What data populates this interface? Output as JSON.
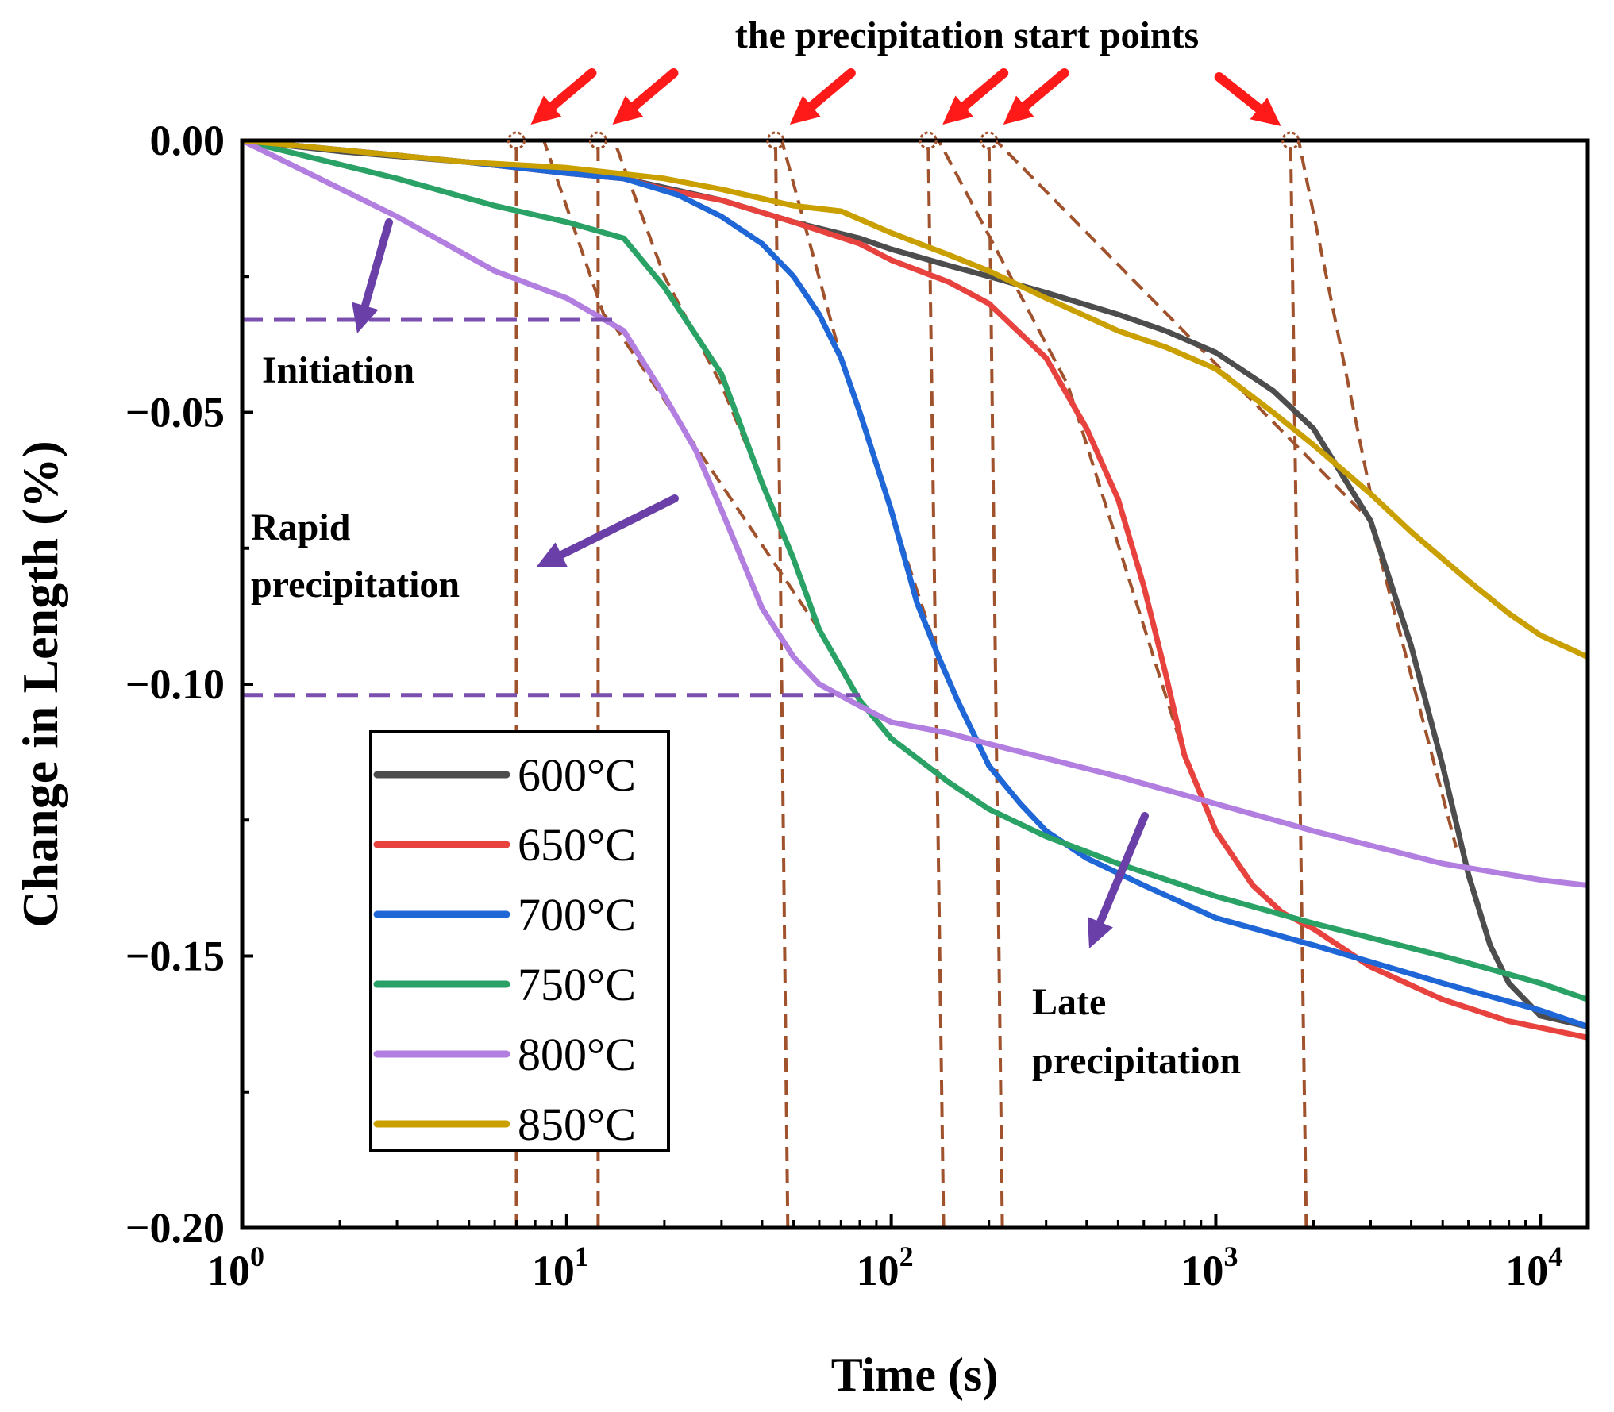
{
  "chart_data": {
    "type": "line",
    "title": "the precipitation start points",
    "xlabel": "Time (s)",
    "ylabel": "Change in Length (%)",
    "x_scale": "log",
    "xlim": [
      1,
      14000
    ],
    "ylim": [
      -0.2,
      0.0
    ],
    "x_ticks": [
      {
        "value": 1,
        "base": "10",
        "exp": "0"
      },
      {
        "value": 10,
        "base": "10",
        "exp": "1"
      },
      {
        "value": 100,
        "base": "10",
        "exp": "2"
      },
      {
        "value": 1000,
        "base": "10",
        "exp": "3"
      },
      {
        "value": 10000,
        "base": "10",
        "exp": "4"
      }
    ],
    "y_ticks": [
      {
        "value": 0.0,
        "label": "0.00"
      },
      {
        "value": -0.05,
        "label": "−0.05"
      },
      {
        "value": -0.1,
        "label": "−0.10"
      },
      {
        "value": -0.15,
        "label": "−0.15"
      },
      {
        "value": -0.2,
        "label": "−0.20"
      }
    ],
    "legend_position": "bottom-left",
    "series": [
      {
        "name": "600°C",
        "color": "#4d4d4d",
        "points": [
          [
            1,
            0
          ],
          [
            2,
            -0.002
          ],
          [
            5,
            -0.004
          ],
          [
            10,
            -0.006
          ],
          [
            15,
            -0.007
          ],
          [
            30,
            -0.011
          ],
          [
            50,
            -0.015
          ],
          [
            80,
            -0.018
          ],
          [
            100,
            -0.02
          ],
          [
            150,
            -0.023
          ],
          [
            200,
            -0.025
          ],
          [
            300,
            -0.028
          ],
          [
            500,
            -0.032
          ],
          [
            700,
            -0.035
          ],
          [
            1000,
            -0.039
          ],
          [
            1500,
            -0.046
          ],
          [
            2000,
            -0.053
          ],
          [
            3000,
            -0.07
          ],
          [
            4000,
            -0.093
          ],
          [
            5000,
            -0.115
          ],
          [
            6000,
            -0.135
          ],
          [
            7000,
            -0.148
          ],
          [
            8000,
            -0.155
          ],
          [
            10000,
            -0.161
          ],
          [
            14000,
            -0.163
          ]
        ]
      },
      {
        "name": "650°C",
        "color": "#e8423f",
        "points": [
          [
            1,
            0
          ],
          [
            5,
            -0.004
          ],
          [
            10,
            -0.006
          ],
          [
            15,
            -0.007
          ],
          [
            20,
            -0.009
          ],
          [
            30,
            -0.011
          ],
          [
            50,
            -0.015
          ],
          [
            80,
            -0.019
          ],
          [
            100,
            -0.022
          ],
          [
            150,
            -0.026
          ],
          [
            200,
            -0.03
          ],
          [
            300,
            -0.04
          ],
          [
            400,
            -0.053
          ],
          [
            500,
            -0.066
          ],
          [
            600,
            -0.082
          ],
          [
            700,
            -0.098
          ],
          [
            800,
            -0.113
          ],
          [
            1000,
            -0.127
          ],
          [
            1300,
            -0.137
          ],
          [
            1600,
            -0.142
          ],
          [
            2000,
            -0.145
          ],
          [
            3000,
            -0.152
          ],
          [
            5000,
            -0.158
          ],
          [
            8000,
            -0.162
          ],
          [
            14000,
            -0.165
          ]
        ]
      },
      {
        "name": "700°C",
        "color": "#1f66d6",
        "points": [
          [
            1,
            0
          ],
          [
            5,
            -0.004
          ],
          [
            10,
            -0.006
          ],
          [
            15,
            -0.007
          ],
          [
            22,
            -0.01
          ],
          [
            30,
            -0.014
          ],
          [
            40,
            -0.019
          ],
          [
            50,
            -0.025
          ],
          [
            60,
            -0.032
          ],
          [
            70,
            -0.04
          ],
          [
            80,
            -0.05
          ],
          [
            100,
            -0.068
          ],
          [
            120,
            -0.085
          ],
          [
            140,
            -0.095
          ],
          [
            160,
            -0.103
          ],
          [
            200,
            -0.115
          ],
          [
            250,
            -0.122
          ],
          [
            300,
            -0.127
          ],
          [
            400,
            -0.132
          ],
          [
            600,
            -0.137
          ],
          [
            1000,
            -0.143
          ],
          [
            2000,
            -0.148
          ],
          [
            5000,
            -0.155
          ],
          [
            10000,
            -0.16
          ],
          [
            14000,
            -0.163
          ]
        ]
      },
      {
        "name": "750°C",
        "color": "#2aa266",
        "points": [
          [
            1,
            0
          ],
          [
            3,
            -0.007
          ],
          [
            6,
            -0.012
          ],
          [
            10,
            -0.015
          ],
          [
            15,
            -0.018
          ],
          [
            20,
            -0.027
          ],
          [
            30,
            -0.043
          ],
          [
            40,
            -0.063
          ],
          [
            50,
            -0.077
          ],
          [
            60,
            -0.09
          ],
          [
            80,
            -0.103
          ],
          [
            100,
            -0.11
          ],
          [
            150,
            -0.118
          ],
          [
            200,
            -0.123
          ],
          [
            300,
            -0.128
          ],
          [
            500,
            -0.133
          ],
          [
            1000,
            -0.139
          ],
          [
            2000,
            -0.144
          ],
          [
            5000,
            -0.15
          ],
          [
            10000,
            -0.155
          ],
          [
            14000,
            -0.158
          ]
        ]
      },
      {
        "name": "800°C",
        "color": "#b27ee0",
        "points": [
          [
            1,
            0
          ],
          [
            3,
            -0.014
          ],
          [
            6,
            -0.024
          ],
          [
            10,
            -0.029
          ],
          [
            15,
            -0.035
          ],
          [
            20,
            -0.047
          ],
          [
            25,
            -0.057
          ],
          [
            30,
            -0.068
          ],
          [
            40,
            -0.086
          ],
          [
            50,
            -0.095
          ],
          [
            60,
            -0.1
          ],
          [
            80,
            -0.104
          ],
          [
            100,
            -0.107
          ],
          [
            150,
            -0.109
          ],
          [
            200,
            -0.111
          ],
          [
            500,
            -0.117
          ],
          [
            1000,
            -0.122
          ],
          [
            2000,
            -0.127
          ],
          [
            5000,
            -0.133
          ],
          [
            10000,
            -0.136
          ],
          [
            14000,
            -0.137
          ]
        ]
      },
      {
        "name": "850°C",
        "color": "#c9a000",
        "points": [
          [
            1,
            0
          ],
          [
            5,
            -0.004
          ],
          [
            10,
            -0.005
          ],
          [
            20,
            -0.007
          ],
          [
            30,
            -0.009
          ],
          [
            50,
            -0.012
          ],
          [
            70,
            -0.013
          ],
          [
            100,
            -0.017
          ],
          [
            150,
            -0.021
          ],
          [
            200,
            -0.024
          ],
          [
            300,
            -0.029
          ],
          [
            500,
            -0.035
          ],
          [
            700,
            -0.038
          ],
          [
            1000,
            -0.042
          ],
          [
            1500,
            -0.05
          ],
          [
            2000,
            -0.056
          ],
          [
            3000,
            -0.065
          ],
          [
            4000,
            -0.072
          ],
          [
            6000,
            -0.081
          ],
          [
            8000,
            -0.087
          ],
          [
            10000,
            -0.091
          ],
          [
            14000,
            -0.095
          ]
        ]
      }
    ],
    "precipitation_start_points": [
      {
        "series": "800°C",
        "t": 7,
        "lines": [
          [
            7,
            -0.2
          ],
          [
            7,
            0
          ],
          [
            8.5,
            0
          ],
          [
            13,
            -0.032
          ],
          [
            14,
            -0.034
          ],
          [
            60,
            -0.09
          ]
        ]
      },
      {
        "series": "750°C",
        "t": 12.5,
        "lines": [
          [
            12.5,
            -0.2
          ],
          [
            12.5,
            0
          ],
          [
            14,
            0
          ],
          [
            20,
            -0.025
          ],
          [
            30,
            -0.045
          ],
          [
            50,
            -0.077
          ]
        ]
      },
      {
        "series": "700°C",
        "t": 44,
        "lines": [
          [
            48,
            -0.2
          ],
          [
            44,
            0
          ],
          [
            46,
            0
          ],
          [
            70,
            -0.04
          ],
          [
            140,
            -0.095
          ]
        ]
      },
      {
        "series": "650°C",
        "t": 130,
        "lines": [
          [
            145,
            -0.2
          ],
          [
            130,
            0
          ],
          [
            140,
            0
          ],
          [
            350,
            -0.045
          ],
          [
            800,
            -0.113
          ]
        ]
      },
      {
        "series": "600°C",
        "t": 200,
        "lines": [
          [
            220,
            -0.2
          ],
          [
            200,
            0
          ],
          [
            210,
            0
          ],
          [
            3000,
            -0.07
          ],
          [
            5500,
            -0.13
          ]
        ]
      },
      {
        "series": "850°C",
        "t": 1700,
        "lines": [
          [
            1900,
            -0.2
          ],
          [
            1700,
            0
          ],
          [
            1800,
            0
          ],
          [
            3000,
            -0.065
          ]
        ]
      }
    ],
    "stage_lines": [
      {
        "y": -0.033,
        "x_from": 1,
        "x_to": 14
      },
      {
        "y": -0.102,
        "x_from": 1,
        "x_to": 80
      }
    ],
    "annotations": [
      {
        "id": "initiation",
        "lines": [
          "Initiation"
        ]
      },
      {
        "id": "rapid",
        "lines": [
          "Rapid",
          "precipitation"
        ]
      },
      {
        "id": "late",
        "lines": [
          "Late",
          "precipitation"
        ]
      }
    ],
    "colors": {
      "marker_lines": "#a0522d",
      "stage_lines": "#7a4fb0",
      "stage_arrows": "#6a3fa8",
      "start_arrows": "#ff1a1a"
    }
  }
}
